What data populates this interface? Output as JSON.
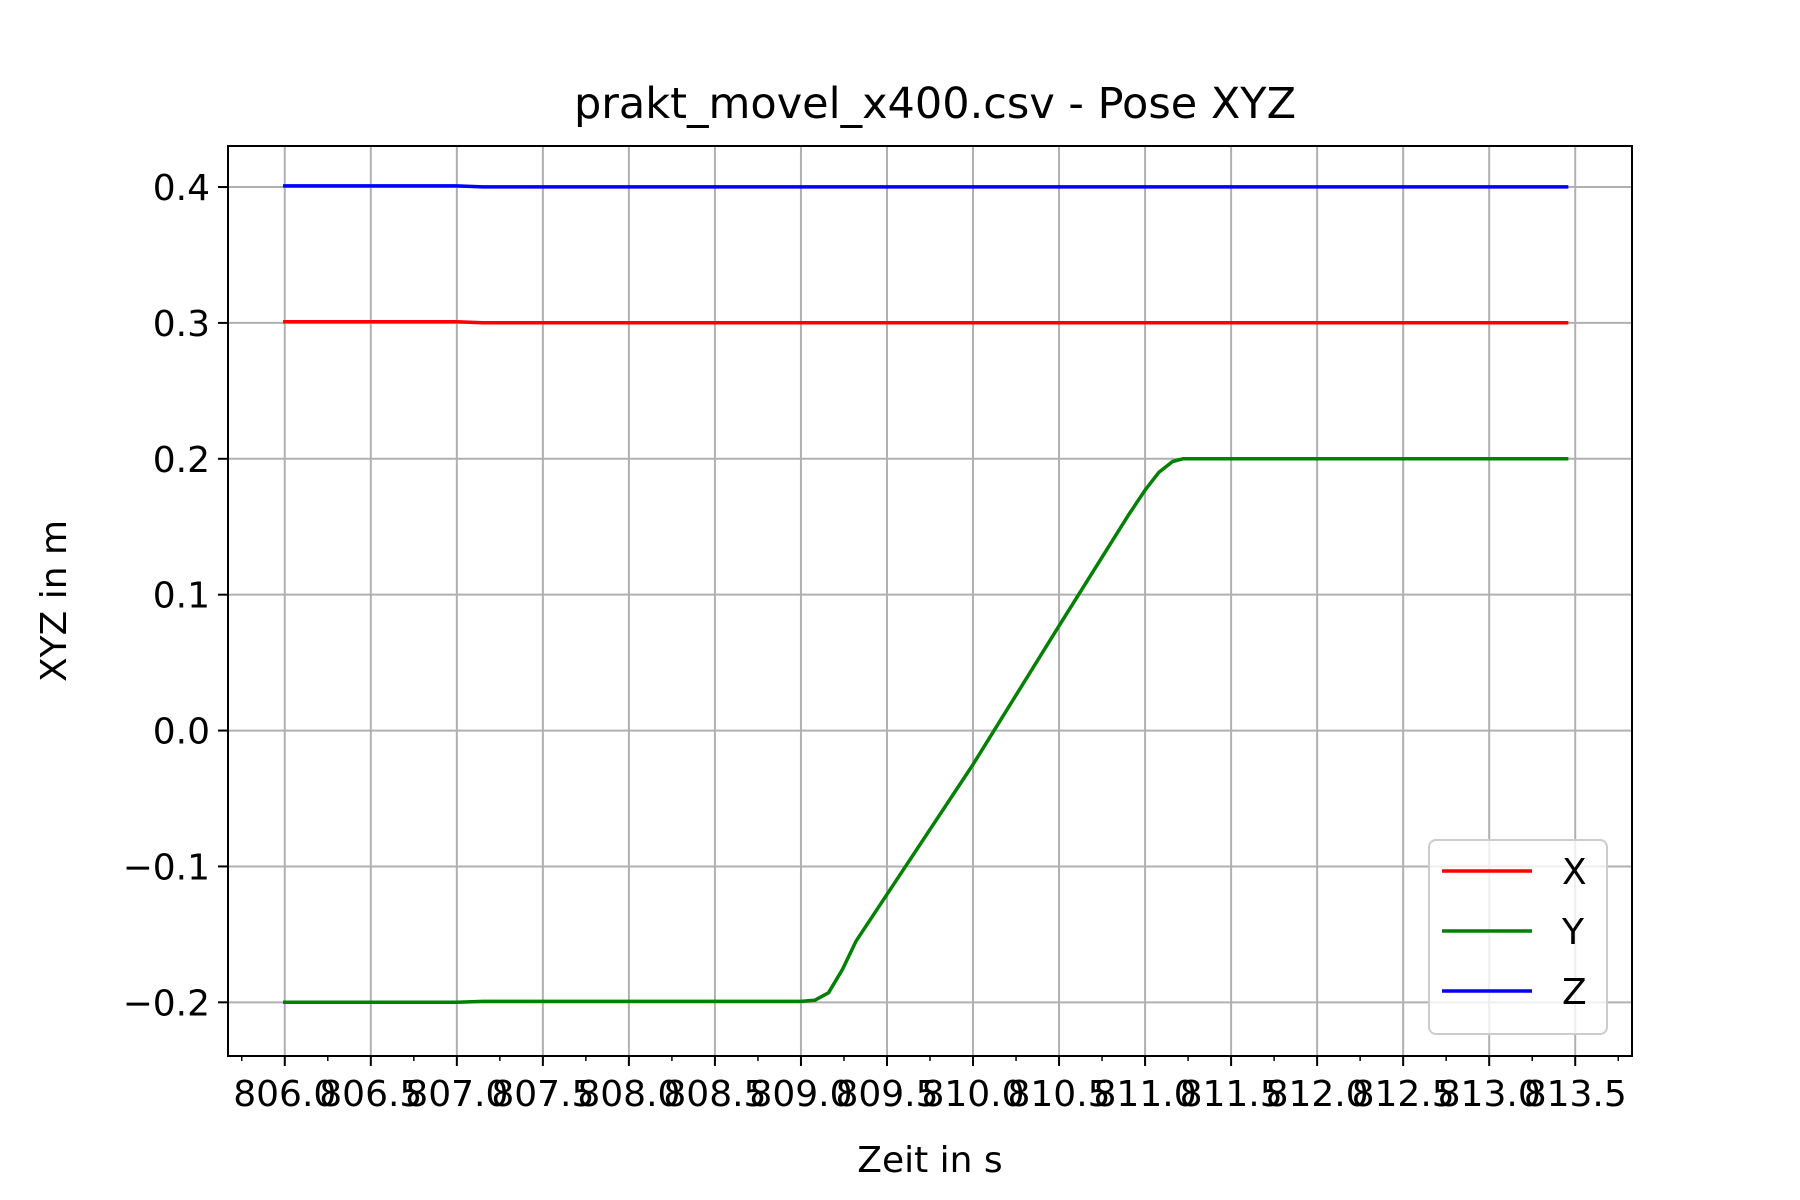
{
  "chart_data": {
    "type": "line",
    "title": "prakt_movel_x400.csv - Pose XYZ",
    "xlabel": "Zeit in s",
    "ylabel": "XYZ in m",
    "xlim": [
      805.67,
      813.83
    ],
    "ylim": [
      -0.2395,
      0.4302
    ],
    "x_ticks": [
      806.0,
      806.5,
      807.0,
      807.5,
      808.0,
      808.5,
      809.0,
      809.5,
      810.0,
      810.5,
      811.0,
      811.5,
      812.0,
      812.5,
      813.0,
      813.5
    ],
    "x_tick_labels": [
      "806.0",
      "806.5",
      "807.0",
      "807.5",
      "808.0",
      "808.5",
      "809.0",
      "809.5",
      "810.0",
      "810.5",
      "811.0",
      "811.5",
      "812.0",
      "812.5",
      "813.0",
      "813.5"
    ],
    "x_minor_step": 0.25,
    "y_ticks": [
      -0.2,
      -0.1,
      0.0,
      0.1,
      0.2,
      0.3,
      0.4
    ],
    "y_tick_labels": [
      "−0.2",
      "−0.1",
      "0.0",
      "0.1",
      "0.2",
      "0.3",
      "0.4"
    ],
    "grid": true,
    "legend_position": "lower-right",
    "series": [
      {
        "name": "X",
        "color": "#ff0000",
        "x": [
          806.0,
          807.0,
          807.15,
          813.45
        ],
        "y": [
          0.3008,
          0.3008,
          0.3001,
          0.3001
        ]
      },
      {
        "name": "Y",
        "color": "#008000",
        "x": [
          806.0,
          807.0,
          807.15,
          809.0,
          809.08,
          809.16,
          809.24,
          809.32,
          810.0,
          810.5,
          810.9,
          811.0,
          811.08,
          811.16,
          811.22,
          813.45
        ],
        "y": [
          -0.2,
          -0.2,
          -0.1993,
          -0.1993,
          -0.1985,
          -0.193,
          -0.176,
          -0.155,
          -0.025,
          0.077,
          0.158,
          0.177,
          0.19,
          0.198,
          0.2,
          0.2
        ]
      },
      {
        "name": "Z",
        "color": "#0000ff",
        "x": [
          806.0,
          807.0,
          807.15,
          813.45
        ],
        "y": [
          0.4008,
          0.4008,
          0.4001,
          0.4001
        ]
      }
    ]
  }
}
